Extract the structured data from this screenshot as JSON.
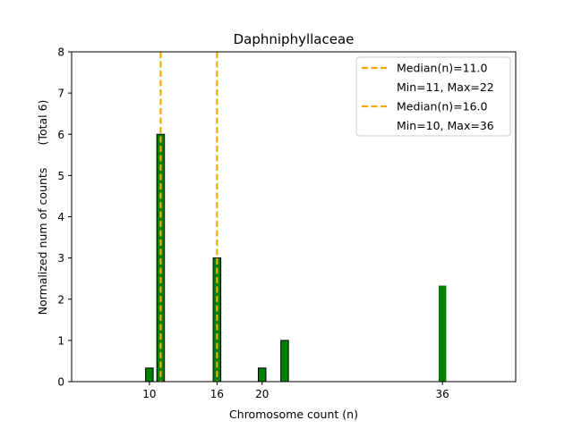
{
  "chart_data": {
    "type": "bar",
    "title": "Daphniphyllaceae",
    "xlabel": "Chromosome count (n)",
    "ylabel": "Normalized num of counts",
    "ylabel_note": "(Total 6)",
    "xlim": [
      3.1,
      42.5
    ],
    "ylim": [
      0,
      8
    ],
    "xticks": [
      10,
      16,
      20,
      36
    ],
    "yticks": [
      0,
      1,
      2,
      3,
      4,
      5,
      6,
      7,
      8
    ],
    "bar_color": "#008000",
    "median_color": "#f2a900",
    "series": [
      {
        "name": "Median(n)=11.0",
        "stats": "Min=11, Max=22",
        "median": 11.0,
        "bars": [
          {
            "x": 11,
            "value": 6.0,
            "outlined": true
          },
          {
            "x": 16,
            "value": 3.0,
            "outlined": true
          },
          {
            "x": 22,
            "value": 1.0,
            "outlined": true
          }
        ]
      },
      {
        "name": "Median(n)=16.0",
        "stats": "Min=10, Max=36",
        "median": 16.0,
        "bars": [
          {
            "x": 10,
            "value": 0.33,
            "outlined": true
          },
          {
            "x": 20,
            "value": 0.33,
            "outlined": true
          },
          {
            "x": 36,
            "value": 2.33,
            "outlined": false
          }
        ]
      }
    ],
    "legend_position": "top-right"
  }
}
